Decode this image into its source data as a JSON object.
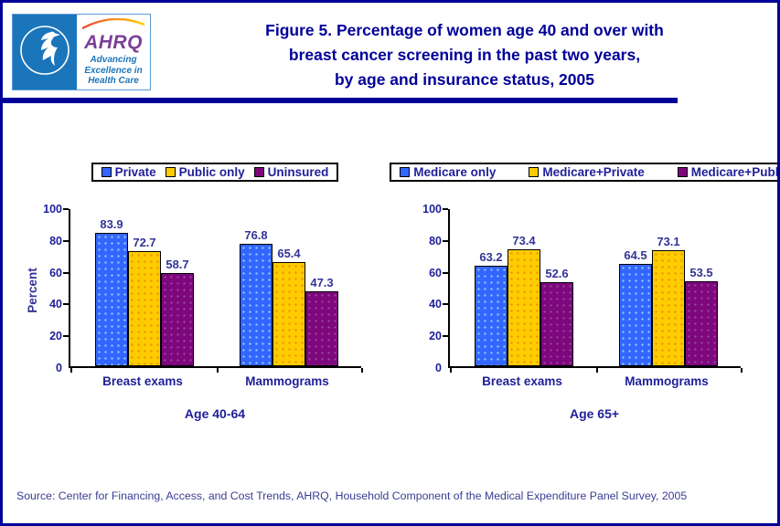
{
  "header": {
    "logo": {
      "hhs_seal": "U.S. Department of Health & Human Services seal",
      "ahrq_acronym": "AHRQ",
      "ahrq_tagline_lines": [
        "Advancing",
        "Excellence in",
        "Health Care"
      ]
    },
    "title_lines": [
      "Figure 5. Percentage of women age 40 and over with",
      "breast cancer screening in the past two years,",
      "by age and insurance status, 2005"
    ]
  },
  "colors": {
    "frame_border": "#000099",
    "title_text": "#000099",
    "chart_text": "#1F1F99",
    "data_label_text": "#333399",
    "source_text": "#3B3B94",
    "series_blue": "#3366FF",
    "series_yellow": "#FFCC00",
    "series_purple": "#7D077D"
  },
  "chart_data": [
    {
      "type": "bar",
      "title": "Age 40-64",
      "xlabel": "",
      "ylabel": "Percent",
      "ylim": [
        0,
        100
      ],
      "yticks": [
        0,
        20,
        40,
        60,
        80,
        100
      ],
      "grid": false,
      "legend_position": "top",
      "categories": [
        "Breast exams",
        "Mammograms"
      ],
      "series": [
        {
          "name": "Private",
          "color": "#3366FF",
          "values": [
            83.9,
            76.8
          ]
        },
        {
          "name": "Public only",
          "color": "#FFCC00",
          "values": [
            72.7,
            65.4
          ]
        },
        {
          "name": "Uninsured",
          "color": "#7D077D",
          "values": [
            58.7,
            47.3
          ]
        }
      ]
    },
    {
      "type": "bar",
      "title": "Age 65+",
      "xlabel": "",
      "ylabel": "",
      "ylim": [
        0,
        100
      ],
      "yticks": [
        0,
        20,
        40,
        60,
        80,
        100
      ],
      "grid": false,
      "legend_position": "top",
      "categories": [
        "Breast exams",
        "Mammograms"
      ],
      "series": [
        {
          "name": "Medicare only",
          "color": "#3366FF",
          "values": [
            63.2,
            64.5
          ]
        },
        {
          "name": "Medicare+Private",
          "color": "#FFCC00",
          "values": [
            73.4,
            73.1
          ]
        },
        {
          "name": "Medicare+Public",
          "color": "#7D077D",
          "values": [
            52.6,
            53.5
          ]
        }
      ]
    }
  ],
  "source": "Source: Center for Financing, Access, and Cost Trends, AHRQ, Household Component of the Medical Expenditure Panel Survey, 2005"
}
